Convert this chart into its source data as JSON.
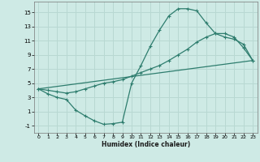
{
  "background_color": "#ceeae5",
  "grid_color": "#b8d8d2",
  "line_color": "#2e7d6e",
  "xlabel": "Humidex (Indice chaleur)",
  "xlim": [
    -0.5,
    23.5
  ],
  "ylim": [
    -2,
    16.5
  ],
  "xticks": [
    0,
    1,
    2,
    3,
    4,
    5,
    6,
    7,
    8,
    9,
    10,
    11,
    12,
    13,
    14,
    15,
    16,
    17,
    18,
    19,
    20,
    21,
    22,
    23
  ],
  "yticks": [
    -1,
    1,
    3,
    5,
    7,
    9,
    11,
    13,
    15
  ],
  "curve1_x": [
    0,
    1,
    2,
    3,
    4,
    5,
    6,
    7,
    8,
    9,
    10,
    11,
    12,
    13,
    14,
    15,
    16,
    17,
    18,
    19,
    20,
    21,
    22,
    23
  ],
  "curve1_y": [
    4.2,
    3.5,
    3.0,
    2.7,
    1.2,
    0.4,
    -0.3,
    -0.8,
    -0.7,
    -0.5,
    5.0,
    7.5,
    10.2,
    12.5,
    14.5,
    15.5,
    15.5,
    15.2,
    13.5,
    12.0,
    11.5,
    11.2,
    10.5,
    8.2
  ],
  "curve2_x": [
    0,
    1,
    2,
    3,
    4,
    5,
    6,
    7,
    8,
    9,
    10,
    11,
    12,
    13,
    14,
    15,
    16,
    17,
    18,
    19,
    20,
    21,
    22,
    23
  ],
  "curve2_y": [
    4.2,
    4.0,
    3.8,
    3.6,
    3.8,
    4.2,
    4.6,
    5.0,
    5.2,
    5.5,
    6.0,
    6.5,
    7.0,
    7.5,
    8.2,
    9.0,
    9.8,
    10.8,
    11.5,
    12.0,
    12.0,
    11.5,
    10.0,
    8.2
  ],
  "curve3_x": [
    0,
    23
  ],
  "curve3_y": [
    4.2,
    8.2
  ]
}
